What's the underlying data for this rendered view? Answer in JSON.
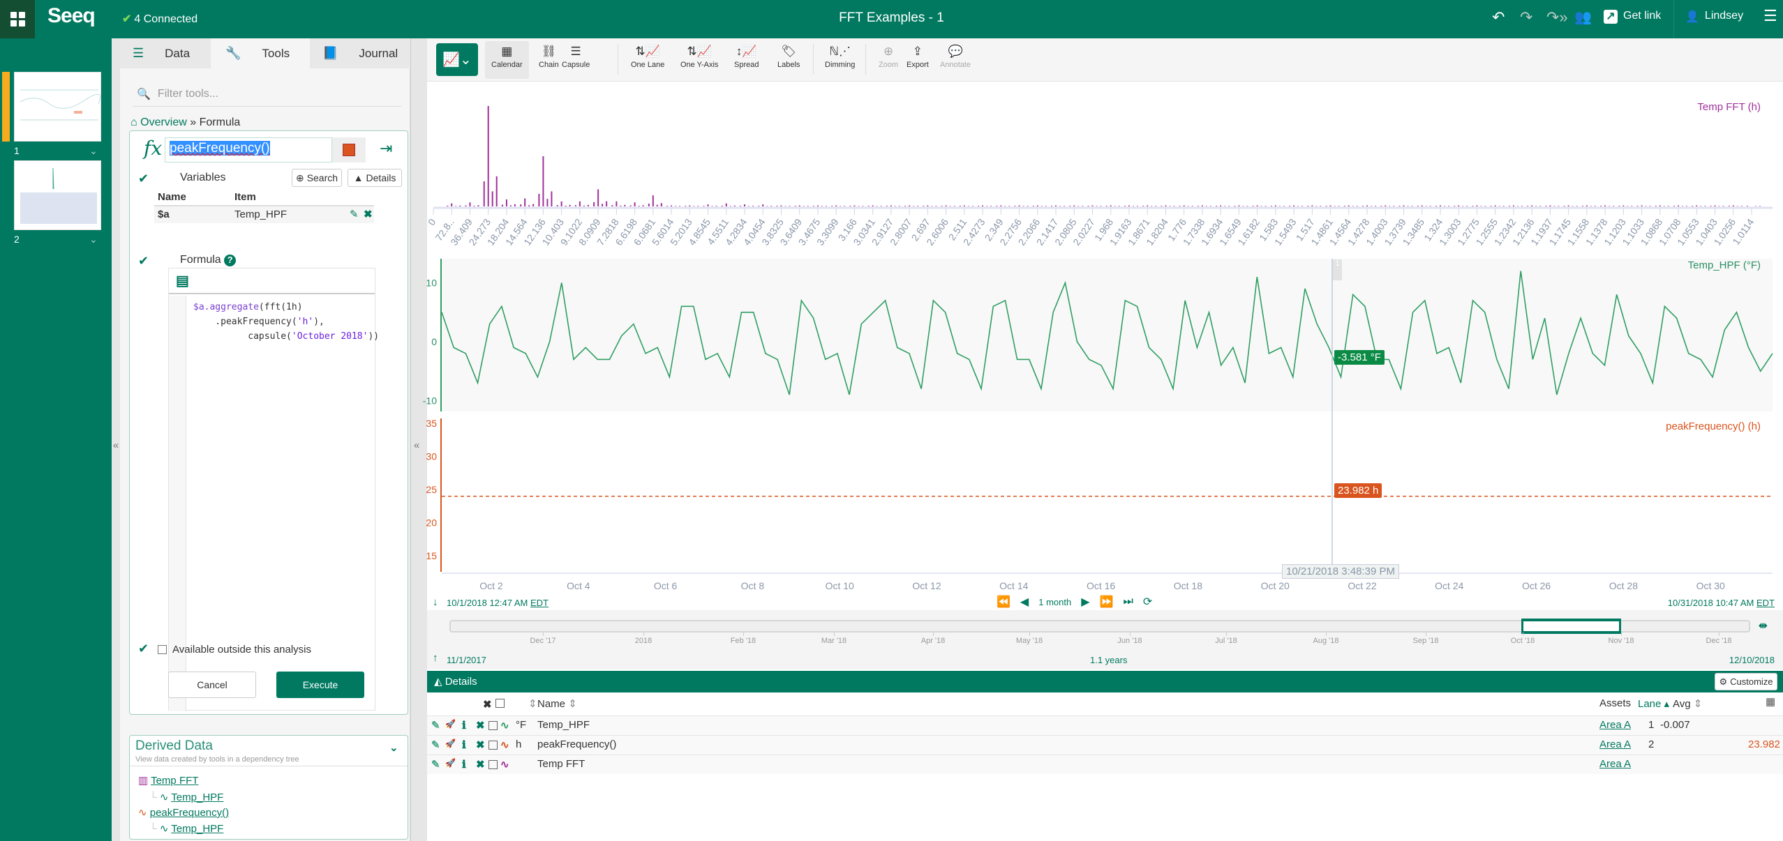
{
  "topbar": {
    "logo": "Seeq",
    "connected": "4 Connected",
    "title": "FFT Examples - 1",
    "get_link": "Get link",
    "user": "Lindsey"
  },
  "worksheets": [
    {
      "number": "1",
      "active": true
    },
    {
      "number": "2",
      "active": false
    }
  ],
  "panel": {
    "tabs": [
      {
        "label": "Data",
        "icon": "database-icon"
      },
      {
        "label": "Tools",
        "icon": "wrench-icon",
        "active": true
      },
      {
        "label": "Journal",
        "icon": "book-icon"
      }
    ],
    "filter_placeholder": "Filter tools...",
    "breadcrumb": {
      "home": "Overview",
      "sep": "»",
      "current": "Formula"
    },
    "formula": {
      "name": "peakFrequency()",
      "color": "#d9541e",
      "variables_label": "Variables",
      "search_label": "Search",
      "details_label": "Details",
      "var_headers": {
        "name": "Name",
        "item": "Item"
      },
      "variables": [
        {
          "name": "$a",
          "item": "Temp_HPF"
        }
      ],
      "formula_label": "Formula",
      "code_lines": [
        "$a.aggregate(fft(1h)",
        "    .peakFrequency('h'),",
        "          capsule('October 2018'))"
      ],
      "available_label": "Available outside this analysis",
      "cancel": "Cancel",
      "execute": "Execute"
    },
    "derived": {
      "title": "Derived Data",
      "subtitle": "View data created by tools in a dependency tree",
      "tree": [
        {
          "label": "Temp FFT",
          "child": "Temp_HPF"
        },
        {
          "label": "peakFrequency()",
          "child": "Temp_HPF"
        }
      ]
    }
  },
  "toolbar": {
    "items": [
      "Calendar",
      "Chain",
      "Capsule",
      "One Lane",
      "One Y-Axis",
      "Spread",
      "Labels",
      "Dimming",
      "Zoom",
      "Export",
      "Annotate"
    ]
  },
  "chart_data": [
    {
      "type": "bar",
      "title": "Temp FFT (h)",
      "color": "#a0309a",
      "categories": [
        "0",
        "72.8..",
        "36.409",
        "24.273",
        "18.204",
        "14.564",
        "12.136",
        "10.403",
        "9.1022",
        "8.0909",
        "7.2818",
        "6.6198",
        "6.0681",
        "5.6014",
        "5.2013",
        "4.8545",
        "4.5511",
        "4.2834",
        "4.0454",
        "3.8325",
        "3.6409",
        "3.4675",
        "3.3099",
        "3.166",
        "3.0341",
        "2.9127",
        "2.8007",
        "2.697",
        "2.6006",
        "2.511",
        "2.4273",
        "2.349",
        "2.2756",
        "2.2066",
        "2.1417",
        "2.0805",
        "2.0227",
        "1.968",
        "1.9163",
        "1.8671",
        "1.8204",
        "1.776",
        "1.7338",
        "1.6934",
        "1.6549",
        "1.6182",
        "1.583",
        "1.5493",
        "1.517",
        "1.4861",
        "1.4564",
        "1.4278",
        "1.4003",
        "1.3739",
        "1.3485",
        "1.324",
        "1.3003",
        "1.2775",
        "1.2555",
        "1.2342",
        "1.2136",
        "1.1937",
        "1.1745",
        "1.1558",
        "1.1378",
        "1.1203",
        "1.1033",
        "1.0868",
        "1.0708",
        "1.0553",
        "1.0403",
        "1.0256",
        "1.0114"
      ],
      "values": [
        0,
        3,
        4,
        100,
        7,
        8,
        50,
        5,
        5,
        17,
        5,
        4,
        11,
        1,
        1,
        2,
        3,
        2,
        2,
        1,
        1,
        1,
        1,
        1,
        1,
        1,
        1,
        1,
        1,
        1,
        1,
        1,
        1,
        1,
        1,
        1,
        1,
        1,
        1,
        1,
        1,
        1,
        1,
        1,
        1,
        1,
        1,
        1,
        1,
        1,
        1,
        1,
        1,
        1,
        1,
        1,
        1,
        1,
        1,
        1,
        1,
        1,
        1,
        1,
        1,
        1,
        1,
        1,
        1,
        1,
        1,
        1,
        0
      ]
    },
    {
      "type": "line",
      "title": "Temp_HPF (°F)",
      "color": "#2f9e63",
      "yticks": [
        "10",
        "0",
        "-10"
      ],
      "ylim": [
        -12,
        14
      ],
      "values": [
        5,
        -1,
        -2,
        -7,
        3,
        6,
        -1,
        -2,
        -6,
        0,
        10,
        -3,
        -1,
        -3,
        -3,
        1,
        3,
        -2,
        -1,
        -6,
        6,
        6,
        -3,
        -2,
        -6,
        5,
        5,
        -2,
        -3,
        -9,
        7,
        4,
        -3,
        -2,
        -9,
        3,
        5,
        7,
        -1,
        -2,
        -8,
        7,
        5,
        -2,
        -3,
        -8,
        6,
        7,
        -3,
        -3,
        -8,
        5,
        10,
        0,
        -3,
        -4,
        -8,
        7,
        6,
        -1,
        -3,
        -8,
        7,
        -1,
        5,
        -4,
        -1,
        -7,
        11,
        -2,
        -1,
        -6,
        9,
        3,
        -1,
        -6,
        8,
        6,
        -3,
        -3,
        -8,
        5,
        7,
        -2,
        -1,
        -7,
        7,
        5,
        -3,
        -8,
        12,
        -3,
        4,
        -9,
        -2,
        4,
        -2,
        -4,
        8,
        1,
        -2,
        -7,
        6,
        4,
        -2,
        -3,
        -6,
        2,
        5,
        -1,
        -5,
        -2
      ],
      "cursor_value": "-3.581 °F"
    },
    {
      "type": "line",
      "title": "peakFrequency() (h)",
      "color": "#d9541e",
      "yticks": [
        "35",
        "30",
        "25",
        "20",
        "15"
      ],
      "ylim": [
        13.5,
        35.5
      ],
      "value": 23.982,
      "cursor_value": "23.982 h"
    }
  ],
  "time_axis": {
    "ticks": [
      "Oct 2",
      "Oct 4",
      "Oct 6",
      "Oct 8",
      "Oct 10",
      "Oct 12",
      "Oct 14",
      "Oct 16",
      "Oct 18",
      "Oct 20",
      "Oct 22",
      "Oct 24",
      "Oct 26",
      "Oct 28",
      "Oct 30"
    ],
    "cursor": "10/21/2018 3:48:39 PM",
    "start": "10/1/2018 12:47 AM",
    "end": "10/31/2018 10:47 AM",
    "tz": "EDT",
    "duration": "1 month"
  },
  "navigator": {
    "ticks": [
      "Dec '17",
      "2018",
      "Feb '18",
      "Mar '18",
      "Apr '18",
      "May '18",
      "Jun '18",
      "Jul '18",
      "Aug '18",
      "Sep '18",
      "Oct '18",
      "Nov '18",
      "Dec '18"
    ],
    "start": "11/1/2017",
    "end": "12/10/2018",
    "duration": "1.1 years"
  },
  "details": {
    "title": "Details",
    "customize": "Customize",
    "headers": {
      "name": "Name",
      "assets": "Assets",
      "lane": "Lane",
      "avg": "Avg"
    },
    "rows": [
      {
        "unit": "°F",
        "name": "Temp_HPF",
        "asset": "Area A",
        "lane": "1",
        "avg": "-0.007",
        "value": "",
        "icon": "signal-icon",
        "color": "#2f9e63"
      },
      {
        "unit": "h",
        "name": "peakFrequency()",
        "asset": "Area A",
        "lane": "2",
        "avg": "",
        "value": "23.982",
        "icon": "scalar-signal-icon",
        "color": "#d9541e"
      },
      {
        "unit": "",
        "name": "Temp FFT",
        "asset": "Area A",
        "lane": "",
        "avg": "",
        "value": "",
        "icon": "histogram-icon",
        "color": "#a0309a"
      }
    ]
  }
}
